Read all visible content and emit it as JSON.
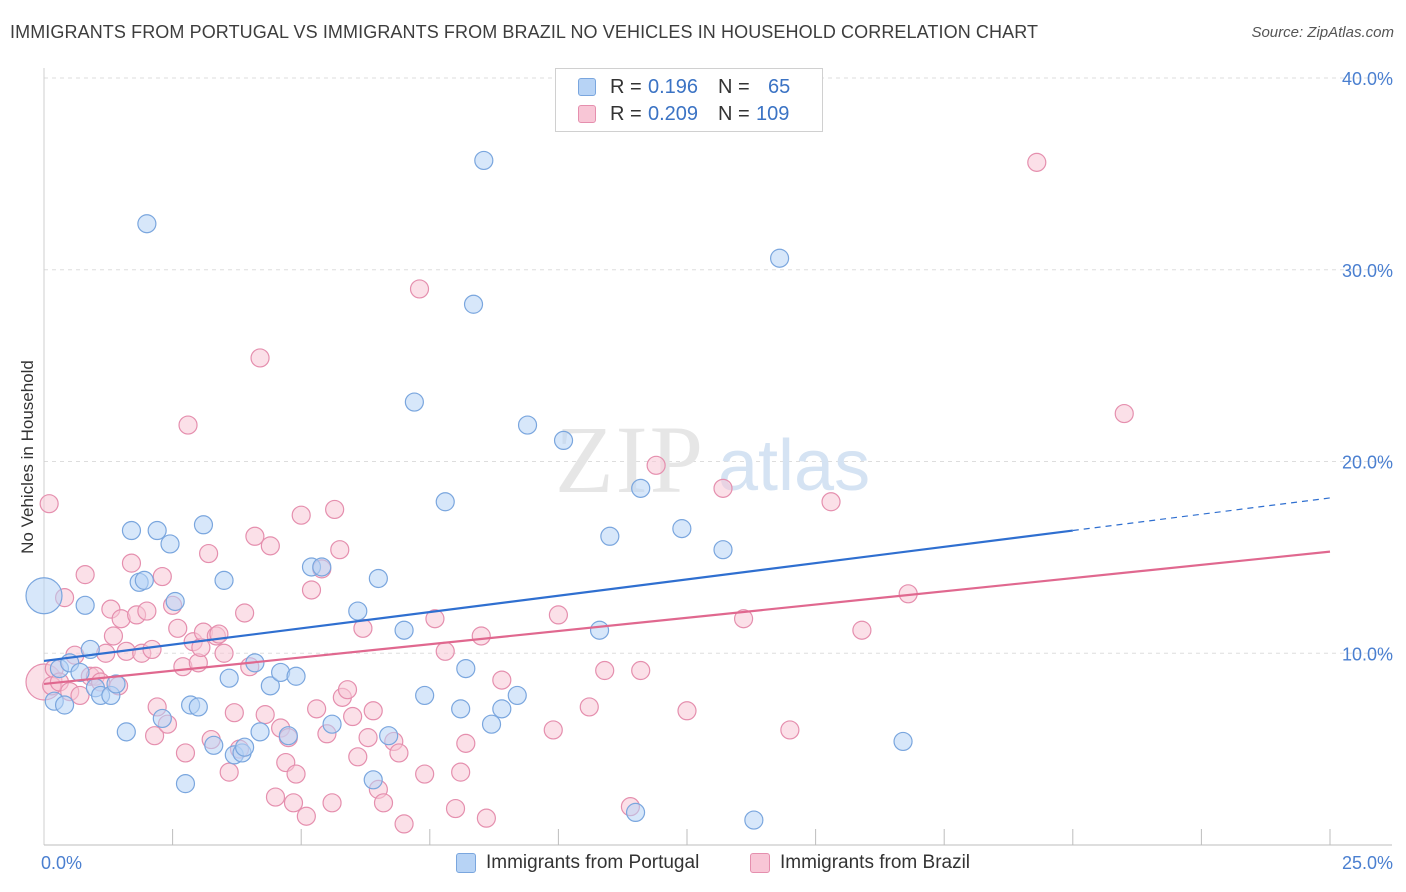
{
  "title": "IMMIGRANTS FROM PORTUGAL VS IMMIGRANTS FROM BRAZIL NO VEHICLES IN HOUSEHOLD CORRELATION CHART",
  "source": "Source: ZipAtlas.com",
  "watermark": {
    "zip": "ZIP",
    "atlas": "atlas"
  },
  "legend": {
    "portugal": {
      "r_label": "R =",
      "r_value": "0.196",
      "n_label": "N =",
      "n_value": "65"
    },
    "brazil": {
      "r_label": "R =",
      "r_value": "0.209",
      "n_label": "N =",
      "n_value": "109"
    }
  },
  "colors": {
    "portugal_fill": "#b7d3f5",
    "portugal_stroke": "#7aa6de",
    "portugal_line": "#2f6fd0",
    "brazil_fill": "#f8c6d6",
    "brazil_stroke": "#e58fae",
    "brazil_line": "#e0688f",
    "tick_label": "#4a7fd0",
    "grid": "#dddddd"
  },
  "chart_data": {
    "type": "scatter",
    "title": "IMMIGRANTS FROM PORTUGAL VS IMMIGRANTS FROM BRAZIL NO VEHICLES IN HOUSEHOLD CORRELATION CHART",
    "xlabel": "",
    "ylabel": "No Vehicles in Household",
    "xlim": [
      0,
      25
    ],
    "ylim": [
      0,
      40
    ],
    "x_tick_labels": [
      "0.0%",
      "25.0%"
    ],
    "y_tick_labels": [
      "10.0%",
      "20.0%",
      "30.0%",
      "40.0%"
    ],
    "y_ticks": [
      10,
      20,
      30,
      40
    ],
    "grid": true,
    "legend_position": "top-center",
    "series": [
      {
        "name": "Immigrants from Portugal",
        "r": 0.196,
        "n": 65,
        "trend": {
          "x0": 0,
          "y0": 9.6,
          "x1": 20,
          "y1": 16.4,
          "dashed_to_x": 25,
          "dashed_to_y": 18.1
        },
        "points": [
          [
            0.0,
            13.0,
            "large"
          ],
          [
            0.2,
            7.5
          ],
          [
            0.3,
            9.2
          ],
          [
            0.4,
            7.3
          ],
          [
            0.5,
            9.5
          ],
          [
            0.7,
            9.0
          ],
          [
            0.8,
            12.5
          ],
          [
            0.9,
            10.2
          ],
          [
            1.0,
            8.2
          ],
          [
            1.1,
            7.8
          ],
          [
            1.3,
            7.8
          ],
          [
            1.4,
            8.4
          ],
          [
            1.6,
            5.9
          ],
          [
            1.7,
            16.4
          ],
          [
            1.85,
            13.7
          ],
          [
            1.95,
            13.8
          ],
          [
            2.0,
            32.4
          ],
          [
            2.2,
            16.4
          ],
          [
            2.3,
            6.6
          ],
          [
            2.45,
            15.7
          ],
          [
            2.55,
            12.7
          ],
          [
            2.75,
            3.2
          ],
          [
            2.85,
            7.3
          ],
          [
            3.0,
            7.2
          ],
          [
            3.1,
            16.7
          ],
          [
            3.3,
            5.2
          ],
          [
            3.5,
            13.8
          ],
          [
            3.6,
            8.7
          ],
          [
            3.7,
            4.7
          ],
          [
            3.85,
            4.8
          ],
          [
            3.9,
            5.1
          ],
          [
            4.1,
            9.5
          ],
          [
            4.2,
            5.9
          ],
          [
            4.4,
            8.3
          ],
          [
            4.6,
            9.0
          ],
          [
            4.75,
            5.7
          ],
          [
            4.9,
            8.8
          ],
          [
            5.2,
            14.5
          ],
          [
            5.4,
            14.5
          ],
          [
            5.6,
            6.3
          ],
          [
            6.1,
            12.2
          ],
          [
            6.4,
            3.4
          ],
          [
            6.5,
            13.9
          ],
          [
            6.7,
            5.7
          ],
          [
            7.0,
            11.2
          ],
          [
            7.2,
            23.1
          ],
          [
            7.4,
            7.8
          ],
          [
            7.8,
            17.9
          ],
          [
            8.1,
            7.1
          ],
          [
            8.2,
            9.2
          ],
          [
            8.35,
            28.2
          ],
          [
            8.55,
            35.7
          ],
          [
            8.7,
            6.3
          ],
          [
            8.9,
            7.1
          ],
          [
            9.2,
            7.8
          ],
          [
            9.4,
            21.9
          ],
          [
            10.1,
            21.1
          ],
          [
            10.8,
            11.2
          ],
          [
            11.0,
            16.1
          ],
          [
            11.5,
            1.7
          ],
          [
            11.6,
            18.6
          ],
          [
            12.4,
            16.5
          ],
          [
            13.2,
            15.4
          ],
          [
            13.8,
            1.3
          ],
          [
            14.3,
            30.6
          ],
          [
            16.7,
            5.4
          ]
        ]
      },
      {
        "name": "Immigrants from Brazil",
        "r": 0.209,
        "n": 109,
        "trend": {
          "x0": 0,
          "y0": 8.4,
          "x1": 25,
          "y1": 15.3
        },
        "points": [
          [
            0.0,
            8.5,
            "large"
          ],
          [
            0.1,
            17.8
          ],
          [
            0.15,
            8.3
          ],
          [
            0.2,
            9.2
          ],
          [
            0.3,
            8.5
          ],
          [
            0.4,
            12.9
          ],
          [
            0.5,
            8.0
          ],
          [
            0.6,
            9.9
          ],
          [
            0.7,
            7.8
          ],
          [
            0.8,
            14.1
          ],
          [
            0.9,
            8.8
          ],
          [
            1.0,
            8.8
          ],
          [
            1.1,
            8.5
          ],
          [
            1.2,
            10.0
          ],
          [
            1.3,
            12.3
          ],
          [
            1.35,
            10.9
          ],
          [
            1.45,
            8.3
          ],
          [
            1.5,
            11.8
          ],
          [
            1.6,
            10.1
          ],
          [
            1.7,
            14.7
          ],
          [
            1.8,
            12.0
          ],
          [
            1.9,
            10.0
          ],
          [
            2.0,
            12.2
          ],
          [
            2.1,
            10.2
          ],
          [
            2.15,
            5.7
          ],
          [
            2.2,
            7.2
          ],
          [
            2.3,
            14.0
          ],
          [
            2.4,
            6.3
          ],
          [
            2.5,
            12.5
          ],
          [
            2.6,
            11.3
          ],
          [
            2.7,
            9.3
          ],
          [
            2.75,
            4.8
          ],
          [
            2.8,
            21.9
          ],
          [
            2.9,
            10.6
          ],
          [
            3.0,
            9.5
          ],
          [
            3.05,
            10.3
          ],
          [
            3.1,
            11.1
          ],
          [
            3.2,
            15.2
          ],
          [
            3.25,
            5.5
          ],
          [
            3.35,
            10.9
          ],
          [
            3.4,
            11.0
          ],
          [
            3.5,
            10.0
          ],
          [
            3.6,
            3.8
          ],
          [
            3.7,
            6.9
          ],
          [
            3.8,
            5.0
          ],
          [
            3.9,
            12.1
          ],
          [
            4.0,
            9.3
          ],
          [
            4.1,
            16.1
          ],
          [
            4.2,
            25.4
          ],
          [
            4.3,
            6.8
          ],
          [
            4.4,
            15.6
          ],
          [
            4.5,
            2.5
          ],
          [
            4.6,
            6.1
          ],
          [
            4.7,
            4.3
          ],
          [
            4.75,
            5.6
          ],
          [
            4.85,
            2.2
          ],
          [
            4.9,
            3.7
          ],
          [
            5.0,
            17.2
          ],
          [
            5.1,
            1.5
          ],
          [
            5.2,
            13.3
          ],
          [
            5.3,
            7.1
          ],
          [
            5.4,
            14.4
          ],
          [
            5.5,
            5.8
          ],
          [
            5.6,
            2.2
          ],
          [
            5.65,
            17.5
          ],
          [
            5.75,
            15.4
          ],
          [
            5.8,
            7.7
          ],
          [
            5.9,
            8.1
          ],
          [
            6.0,
            6.7
          ],
          [
            6.1,
            4.6
          ],
          [
            6.2,
            11.3
          ],
          [
            6.3,
            5.6
          ],
          [
            6.4,
            7.0
          ],
          [
            6.5,
            2.9
          ],
          [
            6.6,
            2.2
          ],
          [
            6.8,
            5.4
          ],
          [
            6.9,
            4.8
          ],
          [
            7.0,
            1.1
          ],
          [
            7.3,
            29.0
          ],
          [
            7.4,
            3.7
          ],
          [
            7.6,
            11.8
          ],
          [
            7.8,
            10.1
          ],
          [
            8.0,
            1.9
          ],
          [
            8.1,
            3.8
          ],
          [
            8.2,
            5.3
          ],
          [
            8.5,
            10.9
          ],
          [
            8.6,
            1.4
          ],
          [
            8.9,
            8.6
          ],
          [
            9.9,
            6.0
          ],
          [
            10.0,
            12.0
          ],
          [
            10.6,
            7.2
          ],
          [
            10.9,
            9.1
          ],
          [
            11.4,
            2.0
          ],
          [
            11.6,
            9.1
          ],
          [
            11.9,
            19.8
          ],
          [
            12.5,
            7.0
          ],
          [
            13.2,
            18.6
          ],
          [
            13.6,
            11.8
          ],
          [
            14.5,
            6.0
          ],
          [
            15.3,
            17.9
          ],
          [
            15.9,
            11.2
          ],
          [
            16.8,
            13.1
          ],
          [
            19.3,
            35.6
          ],
          [
            21.0,
            22.5
          ]
        ]
      }
    ]
  },
  "bottom_legend": {
    "portugal": "Immigrants from Portugal",
    "brazil": "Immigrants from Brazil"
  }
}
